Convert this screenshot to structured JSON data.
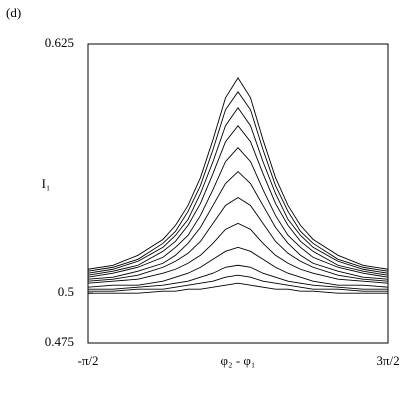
{
  "chart_data": {
    "type": "line",
    "panel_label": "(d)",
    "ylabel": "I₁",
    "xlabel": "φ₂ - φ₁",
    "x": [
      -1.571,
      -1.047,
      -0.524,
      0,
      0.262,
      0.524,
      0.785,
      1.047,
      1.309,
      1.571,
      1.833,
      2.094,
      2.356,
      2.618,
      2.88,
      3.142,
      3.665,
      4.189,
      4.712
    ],
    "xlim": [
      -1.5708,
      4.7124
    ],
    "xticks": [
      {
        "value": -1.5708,
        "label": "-π/2"
      },
      {
        "value": 4.7124,
        "label": "3π/2"
      }
    ],
    "ylim": [
      0.475,
      0.625
    ],
    "yticks": [
      0.475,
      0.5,
      0.625
    ],
    "grid": false,
    "series": [
      {
        "color": "#000000",
        "values": [
          0.512,
          0.514,
          0.519,
          0.527,
          0.534,
          0.544,
          0.558,
          0.577,
          0.598,
          0.608,
          0.598,
          0.577,
          0.558,
          0.544,
          0.534,
          0.527,
          0.519,
          0.514,
          0.512
        ]
      },
      {
        "color": "#000000",
        "values": [
          0.511,
          0.513,
          0.517,
          0.525,
          0.531,
          0.541,
          0.554,
          0.572,
          0.592,
          0.601,
          0.592,
          0.572,
          0.554,
          0.541,
          0.531,
          0.525,
          0.517,
          0.513,
          0.511
        ]
      },
      {
        "color": "#000000",
        "values": [
          0.51,
          0.512,
          0.516,
          0.523,
          0.529,
          0.537,
          0.55,
          0.566,
          0.584,
          0.593,
          0.584,
          0.566,
          0.55,
          0.537,
          0.529,
          0.523,
          0.516,
          0.512,
          0.51
        ]
      },
      {
        "color": "#000000",
        "values": [
          0.509,
          0.511,
          0.514,
          0.521,
          0.526,
          0.534,
          0.545,
          0.56,
          0.576,
          0.584,
          0.576,
          0.56,
          0.545,
          0.534,
          0.526,
          0.521,
          0.514,
          0.511,
          0.509
        ]
      },
      {
        "color": "#000000",
        "values": [
          0.508,
          0.51,
          0.513,
          0.518,
          0.523,
          0.529,
          0.539,
          0.552,
          0.566,
          0.573,
          0.566,
          0.552,
          0.539,
          0.529,
          0.523,
          0.518,
          0.513,
          0.51,
          0.508
        ]
      },
      {
        "color": "#000000",
        "values": [
          0.507,
          0.508,
          0.511,
          0.515,
          0.519,
          0.525,
          0.533,
          0.544,
          0.555,
          0.561,
          0.555,
          0.544,
          0.533,
          0.525,
          0.519,
          0.515,
          0.511,
          0.508,
          0.507
        ]
      },
      {
        "color": "#000000",
        "values": [
          0.506,
          0.507,
          0.509,
          0.513,
          0.516,
          0.52,
          0.526,
          0.535,
          0.544,
          0.548,
          0.544,
          0.535,
          0.526,
          0.52,
          0.516,
          0.513,
          0.509,
          0.507,
          0.506
        ]
      },
      {
        "color": "#000000",
        "values": [
          0.505,
          0.506,
          0.507,
          0.51,
          0.512,
          0.515,
          0.519,
          0.525,
          0.532,
          0.535,
          0.532,
          0.525,
          0.519,
          0.515,
          0.512,
          0.51,
          0.507,
          0.506,
          0.505
        ]
      },
      {
        "color": "#000000",
        "values": [
          0.503,
          0.504,
          0.504,
          0.506,
          0.508,
          0.51,
          0.513,
          0.517,
          0.521,
          0.523,
          0.521,
          0.517,
          0.513,
          0.51,
          0.508,
          0.506,
          0.504,
          0.504,
          0.503
        ]
      },
      {
        "color": "#000000",
        "values": [
          0.502,
          0.502,
          0.503,
          0.504,
          0.505,
          0.506,
          0.508,
          0.51,
          0.513,
          0.514,
          0.513,
          0.51,
          0.508,
          0.506,
          0.505,
          0.504,
          0.503,
          0.502,
          0.502
        ]
      },
      {
        "color": "#000000",
        "values": [
          0.501,
          0.501,
          0.502,
          0.502,
          0.503,
          0.504,
          0.505,
          0.506,
          0.508,
          0.509,
          0.508,
          0.506,
          0.505,
          0.504,
          0.503,
          0.502,
          0.502,
          0.501,
          0.501
        ]
      },
      {
        "color": "#000000",
        "values": [
          0.5,
          0.5,
          0.5,
          0.501,
          0.501,
          0.502,
          0.502,
          0.503,
          0.504,
          0.505,
          0.504,
          0.503,
          0.502,
          0.502,
          0.501,
          0.501,
          0.5,
          0.5,
          0.5
        ]
      }
    ]
  }
}
